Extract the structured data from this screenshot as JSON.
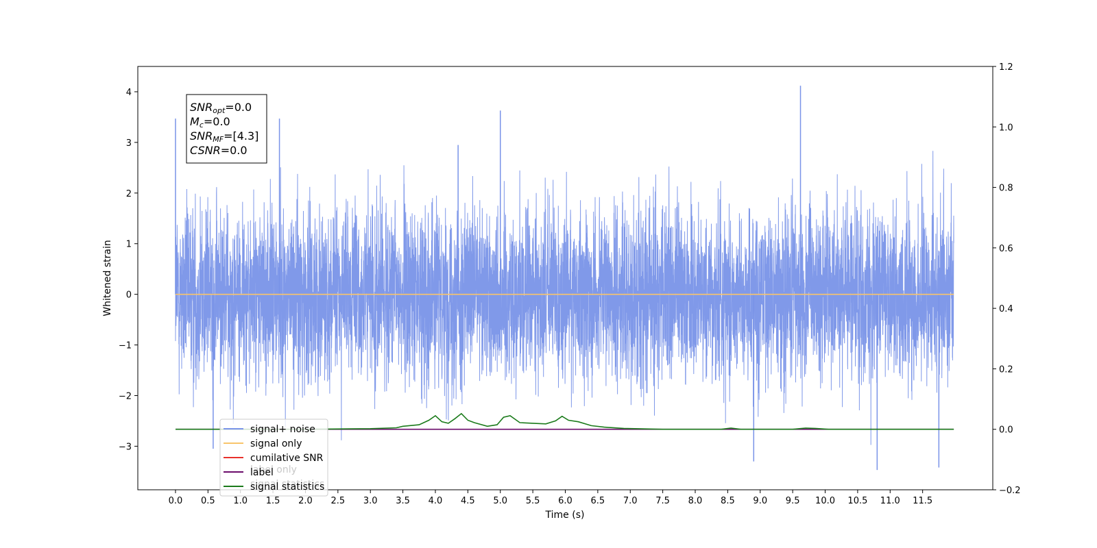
{
  "chart_data": {
    "type": "line",
    "xlabel": "Time (s)",
    "ylabel": "Whitened strain",
    "xlim": [
      -0.58,
      12.58
    ],
    "ylim": [
      -3.86,
      4.5
    ],
    "y2lim": [
      -0.2,
      1.2
    ],
    "x_ticks": [
      "0.0",
      "0.5",
      "1.0",
      "1.5",
      "2.0",
      "2.5",
      "3.0",
      "3.5",
      "4.0",
      "4.5",
      "5.0",
      "5.5",
      "6.0",
      "6.5",
      "7.0",
      "7.5",
      "8.0",
      "8.5",
      "9.0",
      "9.5",
      "10.0",
      "10.5",
      "11.0",
      "11.5"
    ],
    "y_ticks": [
      "4",
      "3",
      "2",
      "1",
      "0",
      "−1",
      "−2",
      "−3"
    ],
    "y2_ticks": [
      "1.2",
      "1.0",
      "0.8",
      "0.6",
      "0.4",
      "0.2",
      "0.0",
      "−0.2"
    ],
    "grid": false,
    "legend": {
      "placement": "lower-left",
      "entries": [
        {
          "label": "signal+ noise",
          "color": "#7993e8"
        },
        {
          "label": "signal only",
          "color": "#f8c46a"
        },
        {
          "label": "cumilative SNR",
          "color": "#e8302a"
        },
        {
          "label": "label",
          "color": "#6a0a6a"
        },
        {
          "label": "signal statistics",
          "color": "#1a7a1a"
        }
      ]
    },
    "hidden_labels": [
      "label only",
      "signal statistics"
    ],
    "annotation": {
      "lines": [
        {
          "sym": "SNR",
          "sub": "opt",
          "val": "=0.0"
        },
        {
          "sym": "M",
          "sub": "c",
          "val": "=0.0"
        },
        {
          "sym": "SNR",
          "sub": "MF",
          "val": "=[4.3]"
        },
        {
          "sym": "CSNR",
          "sub": "",
          "val": "=0.0"
        }
      ]
    },
    "series": [
      {
        "name": "signal+ noise",
        "axis": "left",
        "kind": "noise",
        "x_range": [
          0.0,
          11.98
        ],
        "typical_amplitude": 2.2,
        "peaks": [
          [
            0.0,
            3.47
          ],
          [
            1.6,
            3.47
          ],
          [
            5.0,
            3.63
          ],
          [
            9.62,
            4.12
          ],
          [
            4.35,
            2.95
          ],
          [
            10.8,
            -3.47
          ],
          [
            11.75,
            -3.42
          ],
          [
            8.9,
            -3.3
          ],
          [
            0.58,
            -3.05
          ]
        ],
        "color": "#7993e8"
      },
      {
        "name": "signal only",
        "axis": "left",
        "x": [
          0.0,
          11.98
        ],
        "y": [
          0.0,
          0.0
        ],
        "color": "#f8c46a"
      },
      {
        "name": "label",
        "axis": "right",
        "x": [
          0.0,
          11.98
        ],
        "y": [
          0.0,
          0.0
        ],
        "color": "#6a0a6a"
      },
      {
        "name": "signal statistics",
        "axis": "right",
        "x": [
          0.0,
          2.0,
          3.0,
          3.4,
          3.5,
          3.75,
          3.9,
          4.0,
          4.1,
          4.2,
          4.3,
          4.4,
          4.5,
          4.6,
          4.8,
          4.95,
          5.05,
          5.15,
          5.3,
          5.5,
          5.7,
          5.85,
          5.95,
          6.05,
          6.2,
          6.4,
          6.6,
          6.9,
          7.5,
          8.4,
          8.55,
          8.7,
          9.5,
          9.7,
          9.85,
          10.05,
          11.98
        ],
        "y": [
          0.0,
          0.0,
          0.002,
          0.005,
          0.01,
          0.015,
          0.03,
          0.045,
          0.025,
          0.02,
          0.035,
          0.052,
          0.03,
          0.022,
          0.01,
          0.015,
          0.04,
          0.045,
          0.022,
          0.02,
          0.018,
          0.028,
          0.043,
          0.03,
          0.025,
          0.012,
          0.007,
          0.003,
          0.0,
          0.0,
          0.004,
          0.0,
          0.0,
          0.004,
          0.003,
          0.0,
          0.0
        ],
        "color": "#1a7a1a"
      }
    ]
  }
}
